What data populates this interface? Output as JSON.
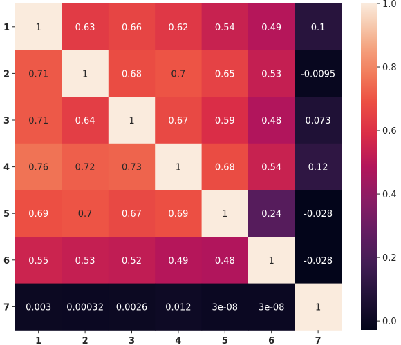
{
  "chart_data": {
    "type": "heatmap",
    "x_labels": [
      "1",
      "2",
      "3",
      "4",
      "5",
      "6",
      "7"
    ],
    "y_labels": [
      "1",
      "2",
      "3",
      "4",
      "5",
      "6",
      "7"
    ],
    "values": [
      [
        1,
        0.63,
        0.66,
        0.62,
        0.54,
        0.49,
        0.1
      ],
      [
        0.71,
        1,
        0.68,
        0.7,
        0.65,
        0.53,
        -0.0095
      ],
      [
        0.71,
        0.64,
        1,
        0.67,
        0.59,
        0.48,
        0.073
      ],
      [
        0.76,
        0.72,
        0.73,
        1,
        0.68,
        0.54,
        0.12
      ],
      [
        0.69,
        0.7,
        0.67,
        0.69,
        1,
        0.24,
        -0.028
      ],
      [
        0.55,
        0.53,
        0.52,
        0.49,
        0.48,
        1,
        -0.028
      ],
      [
        0.003,
        0.00032,
        0.0026,
        0.012,
        3e-08,
        3e-08,
        1
      ]
    ],
    "annotations": [
      [
        "1",
        "0.63",
        "0.66",
        "0.62",
        "0.54",
        "0.49",
        "0.1"
      ],
      [
        "0.71",
        "1",
        "0.68",
        "0.7",
        "0.65",
        "0.53",
        "-0.0095"
      ],
      [
        "0.71",
        "0.64",
        "1",
        "0.67",
        "0.59",
        "0.48",
        "0.073"
      ],
      [
        "0.76",
        "0.72",
        "0.73",
        "1",
        "0.68",
        "0.54",
        "0.12"
      ],
      [
        "0.69",
        "0.7",
        "0.67",
        "0.69",
        "1",
        "0.24",
        "-0.028"
      ],
      [
        "0.55",
        "0.53",
        "0.52",
        "0.49",
        "0.48",
        "1",
        "-0.028"
      ],
      [
        "0.003",
        "0.00032",
        "0.0026",
        "0.012",
        "3e-08",
        "3e-08",
        "1"
      ]
    ],
    "colorbar": {
      "range": [
        -0.028,
        1.0
      ],
      "ticks": [
        0.0,
        0.2,
        0.4,
        0.6,
        0.8,
        1.0
      ],
      "tick_labels": [
        "0.0",
        "0.2",
        "0.4",
        "0.6",
        "0.8",
        "1.0"
      ],
      "colormap": "rocket",
      "placement": "right"
    },
    "title": "",
    "xlabel": "",
    "ylabel": ""
  }
}
